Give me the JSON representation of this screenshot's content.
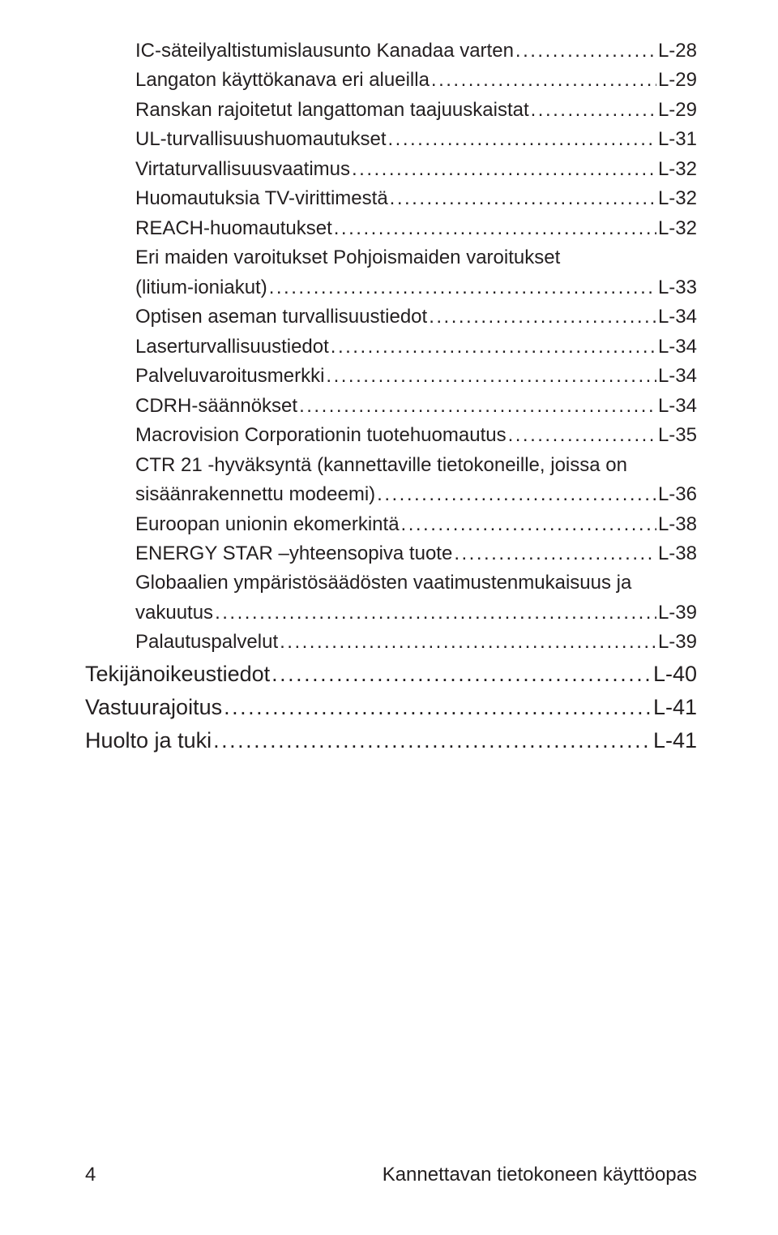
{
  "dots": "...................................................................................................................................................................................................",
  "entries": [
    {
      "level": 2,
      "label": "IC-säteilyaltistumislausunto Kanadaa varten",
      "page": "L-28"
    },
    {
      "level": 2,
      "label": "Langaton käyttökanava eri alueilla",
      "page": "L-29"
    },
    {
      "level": 2,
      "label": "Ranskan rajoitetut langattoman taajuuskaistat",
      "page": "L-29"
    },
    {
      "level": 2,
      "label": "UL-turvallisuushuomautukset",
      "page": "L-31"
    },
    {
      "level": 2,
      "label": "Virtaturvallisuusvaatimus",
      "page": "L-32"
    },
    {
      "level": 2,
      "label": "Huomautuksia TV-virittimestä",
      "page": "L-32"
    },
    {
      "level": 2,
      "label": "REACH-huomautukset",
      "page": "L-32"
    },
    {
      "level": 2,
      "wrap": true,
      "label1": "Eri maiden varoitukset Pohjoismaiden varoitukset",
      "label2": "(litium-ioniakut)",
      "page": "L-33"
    },
    {
      "level": 2,
      "label": "Optisen aseman turvallisuustiedot",
      "page": "L-34"
    },
    {
      "level": 2,
      "label": "Laserturvallisuustiedot",
      "page": "L-34"
    },
    {
      "level": 2,
      "label": "Palveluvaroitusmerkki",
      "page": "L-34"
    },
    {
      "level": 2,
      "label": "CDRH-säännökset",
      "page": "L-34"
    },
    {
      "level": 2,
      "label": "Macrovision Corporationin tuotehuomautus",
      "page": "L-35"
    },
    {
      "level": 2,
      "wrap": true,
      "label1": "CTR 21 -hyväksyntä (kannettaville tietokoneille, joissa on",
      "label2": "sisäänrakennettu modeemi)",
      "page": "L-36"
    },
    {
      "level": 2,
      "label": "Euroopan unionin ekomerkintä",
      "page": "L-38"
    },
    {
      "level": 2,
      "label": "ENERGY STAR –yhteensopiva tuote",
      "page": "L-38"
    },
    {
      "level": 2,
      "wrap": true,
      "label1": "Globaalien ympäristösäädösten vaatimustenmukaisuus ja",
      "label2": "vakuutus",
      "page": "L-39"
    },
    {
      "level": 2,
      "label": "Palautuspalvelut",
      "page": "L-39"
    },
    {
      "level": 1,
      "label": "Tekijänoikeustiedot",
      "page": "L-40"
    },
    {
      "level": 1,
      "label": "Vastuurajoitus",
      "page": "L-41"
    },
    {
      "level": 1,
      "label": "Huolto ja tuki",
      "page": "L-41"
    }
  ],
  "footer": {
    "pageNumber": "4",
    "bookTitle": "Kannettavan tietokoneen käyttöopas"
  }
}
